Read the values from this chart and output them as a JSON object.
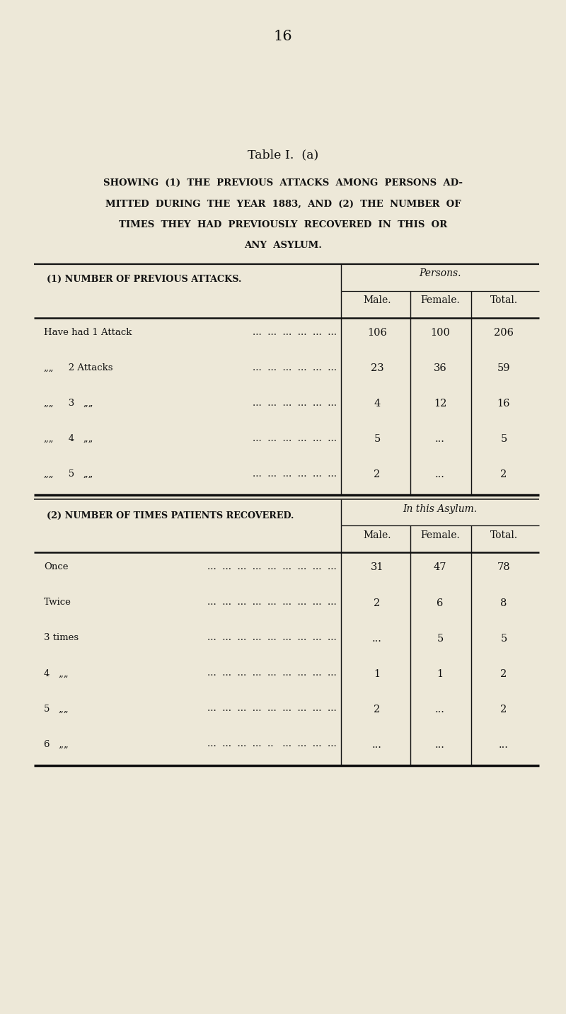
{
  "page_number": "16",
  "table_title": "Table I.  (a)",
  "subtitle_lines": [
    "SHOWING  (1)  THE  PREVIOUS  ATTACKS  AMONG  PERSONS  AD-",
    "MITTED  DURING  THE  YEAR  1883,  AND  (2)  THE  NUMBER  OF",
    "TIMES  THEY  HAD  PREVIOUSLY  RECOVERED  IN  THIS  OR",
    "ANY  ASYLUM."
  ],
  "section1_header": "(1) NUMBER OF PREVIOUS ATTACKS.",
  "section1_col_header": "Persons.",
  "section1_subcols": [
    "Male.",
    "Female.",
    "Total."
  ],
  "section1_rows": [
    {
      "label1": "Have had 1 Attack",
      "dots": "...  ...  ...  ...  ...  ...",
      "male": "106",
      "female": "100",
      "total": "206"
    },
    {
      "label1": "„„     2 Attacks",
      "dots": "...  ...  ...  ...  ...  ...",
      "male": "23",
      "female": "36",
      "total": "59"
    },
    {
      "label1": "„„     3   „„",
      "dots": "...  ...  ...  ...  ...  ...",
      "male": "4",
      "female": "12",
      "total": "16"
    },
    {
      "label1": "„„     4   „„",
      "dots": "...  ...  ...  ...  ...  ...",
      "male": "5",
      "female": "...",
      "total": "5"
    },
    {
      "label1": "„„     5   „„",
      "dots": "...  ...  ...  ...  ...  ...",
      "male": "2",
      "female": "...",
      "total": "2"
    }
  ],
  "section2_header": "(2) NUMBER OF TIMES PATIENTS RECOVERED.",
  "section2_col_header": "In this Asylum.",
  "section2_subcols": [
    "Male.",
    "Female.",
    "Total."
  ],
  "section2_rows": [
    {
      "label1": "Once",
      "dots": "...  ...  ...  ...  ...  ...  ...  ...  ...",
      "male": "31",
      "female": "47",
      "total": "78"
    },
    {
      "label1": "Twice",
      "dots": "...  ...  ...  ...  ...  ...  ...  ...  ...",
      "male": "2",
      "female": "6",
      "total": "8"
    },
    {
      "label1": "3 times",
      "dots": "...  ...  ...  ...  ...  ...  ...  ...  ...",
      "male": "...",
      "female": "5",
      "total": "5"
    },
    {
      "label1": "4   „„",
      "dots": "...  ...  ...  ...  ...  ...  ...  ...  ...",
      "male": "1",
      "female": "1",
      "total": "2"
    },
    {
      "label1": "5   „„",
      "dots": "...  ...  ...  ...  ...  ...  ...  ...  ...",
      "male": "2",
      "female": "...",
      "total": "2"
    },
    {
      "label1": "6   „„",
      "dots": "...  ...  ...  ...  ..   ...  ...  ...  ...",
      "male": "...",
      "female": "...",
      "total": "..."
    }
  ],
  "bg_color": "#ede8d8",
  "text_color": "#111111",
  "line_color": "#111111"
}
